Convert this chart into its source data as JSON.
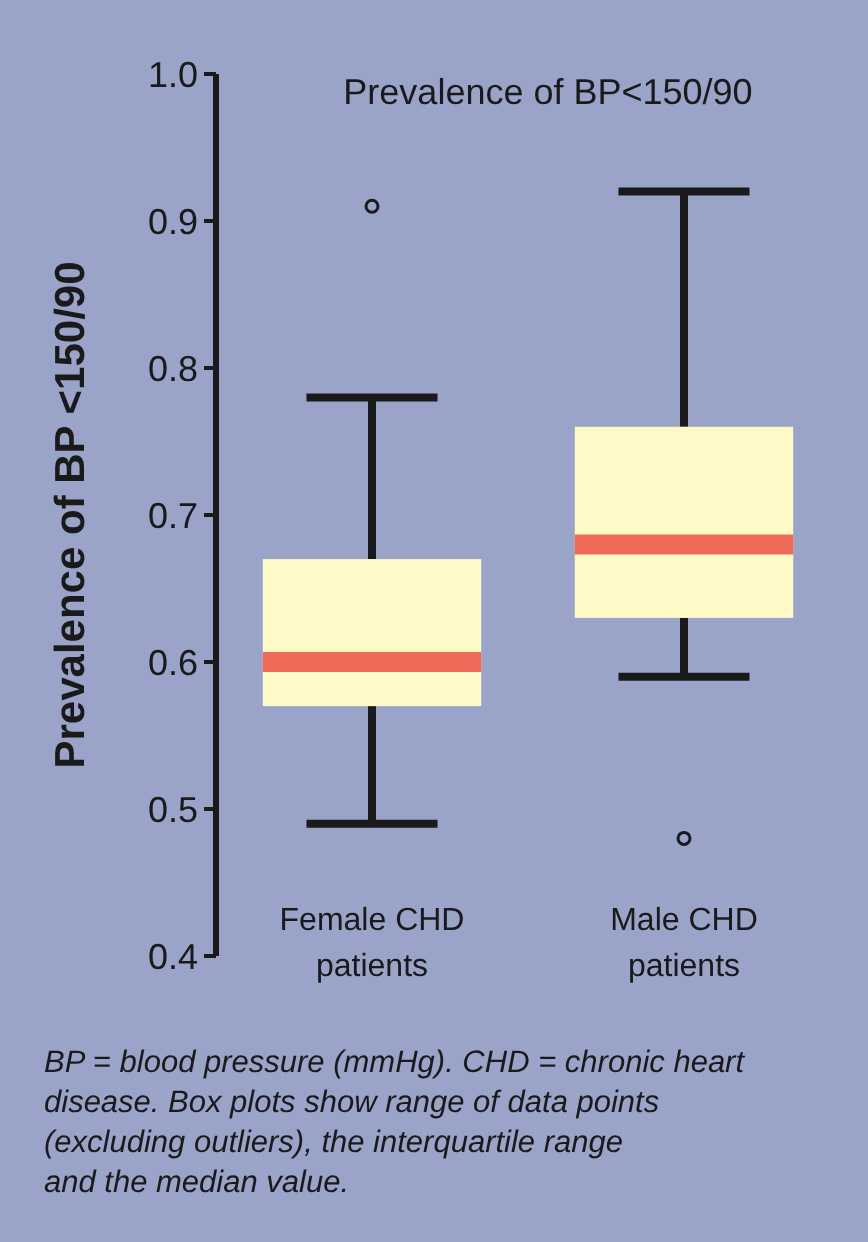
{
  "chart_data": {
    "type": "box",
    "title": "Prevalence of BP<150/90",
    "ylabel": "Prevalence of BP <150/90",
    "categories": [
      "Female CHD patients",
      "Male CHD patients"
    ],
    "boxes": [
      {
        "low": 0.49,
        "q1": 0.57,
        "median": 0.6,
        "q3": 0.67,
        "high": 0.78,
        "outliers": [
          0.91
        ]
      },
      {
        "low": 0.59,
        "q1": 0.63,
        "median": 0.68,
        "q3": 0.76,
        "high": 0.92,
        "outliers": [
          0.48
        ]
      }
    ],
    "ylim": [
      0.4,
      1.0
    ],
    "yticks": [
      {
        "value": 0.4,
        "label": "0.4"
      },
      {
        "value": 0.5,
        "label": "0.5"
      },
      {
        "value": 0.6,
        "label": "0.6"
      },
      {
        "value": 0.7,
        "label": "0.7"
      },
      {
        "value": 0.8,
        "label": "0.8"
      },
      {
        "value": 0.9,
        "label": "0.9"
      },
      {
        "value": 1.0,
        "label": "1.0"
      }
    ],
    "grid": false,
    "color": "#fff9c8",
    "annotations": [
      "BP = blood pressure (mmHg). CHD = chronic heart disease. Box plots show range of data points (excluding outliers), the interquartile range and the median value."
    ]
  }
}
